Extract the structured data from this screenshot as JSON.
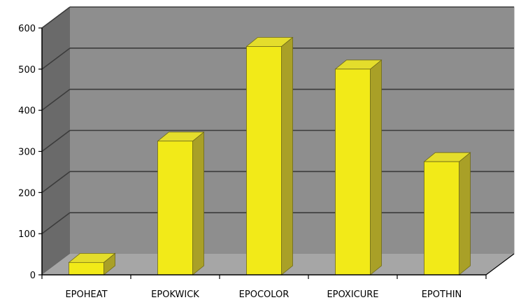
{
  "chart_data": {
    "type": "bar",
    "title": "",
    "xlabel": "",
    "ylabel": "",
    "categories": [
      "EPOHEAT",
      "EPOKWICK",
      "EPOCOLOR",
      "EPOXICURE",
      "EPOTHIN"
    ],
    "values": [
      30,
      325,
      555,
      500,
      275
    ],
    "ylim": [
      0,
      600
    ],
    "yticks": [
      "0",
      "100",
      "200",
      "300",
      "400",
      "500",
      "600"
    ],
    "grid": true,
    "legend": "none",
    "colors": {
      "bar_front": "#f2ea18",
      "bar_top": "#e4dd2c",
      "bar_side": "#a9a027",
      "back_wall": "#8e8e8e",
      "side_wall": "#6a6a6a",
      "floor": "#a6a6a6",
      "gridline": "#3b3b3b"
    }
  }
}
